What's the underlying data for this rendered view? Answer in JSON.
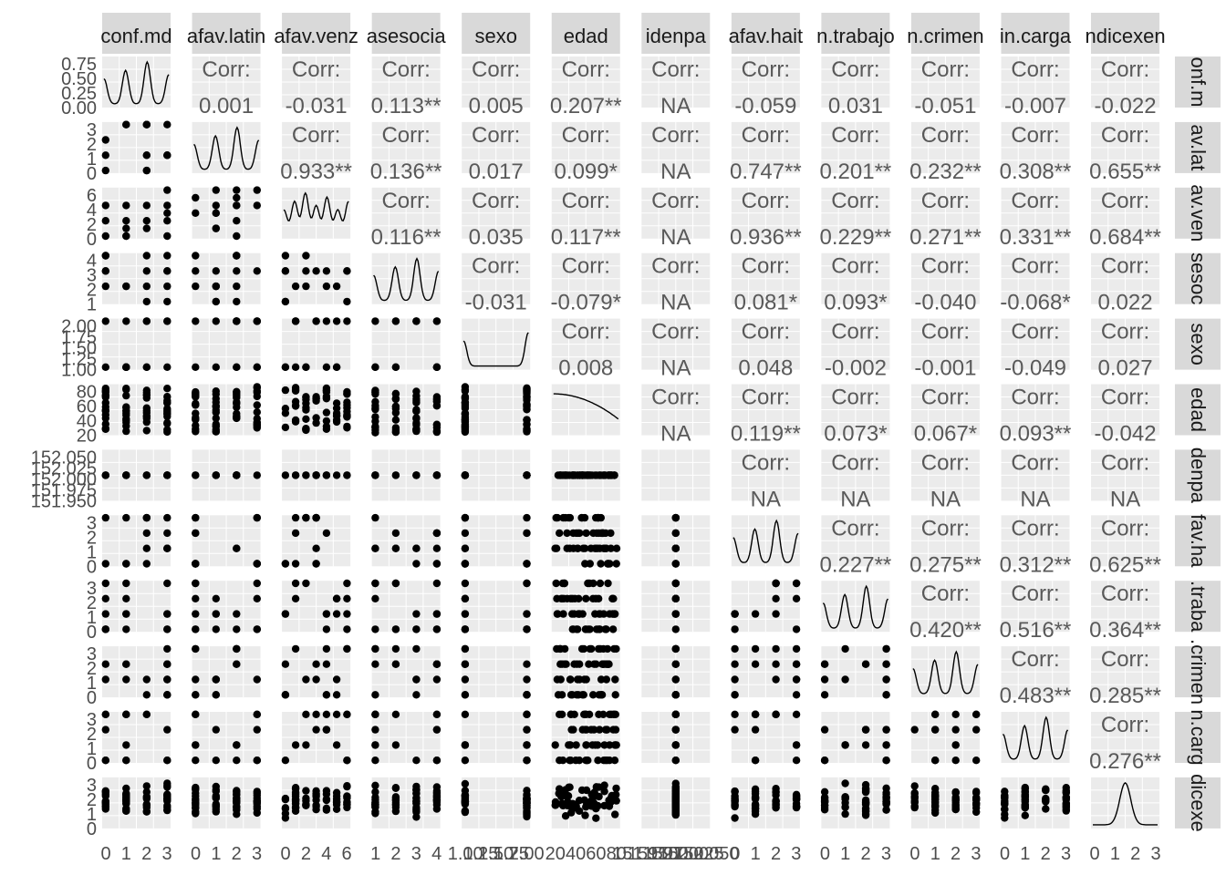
{
  "chart_data": {
    "type": "scatter-matrix",
    "variables": [
      "conf.md",
      "afav.latin",
      "afav.venz",
      "asesocia",
      "sexo",
      "edad",
      "idenpa",
      "afav.hait",
      "n.trabajo",
      "n.crimen",
      "in.carga",
      "ndicexen"
    ],
    "row_labels": [
      "onf.m",
      "av.lat",
      "av.ven",
      "sesoc",
      "sexo",
      "edad",
      "denpa",
      "fav.ha",
      ".traba",
      ".crimen",
      "n.carg",
      "dicexe"
    ],
    "corr_label": "Corr:",
    "correlations": [
      [
        null,
        "0.001",
        "-0.031",
        "0.113**",
        "0.005",
        "0.207**",
        "NA",
        "-0.059",
        "0.031",
        "-0.051",
        "-0.007",
        "-0.022"
      ],
      [
        null,
        null,
        "0.933**",
        "0.136**",
        "0.017",
        "0.099*",
        "NA",
        "0.747**",
        "0.201**",
        "0.232**",
        "0.308**",
        "0.655**"
      ],
      [
        null,
        null,
        null,
        "0.116**",
        "0.035",
        "0.117**",
        "NA",
        "0.936**",
        "0.229**",
        "0.271**",
        "0.331**",
        "0.684**"
      ],
      [
        null,
        null,
        null,
        null,
        "-0.031",
        "-0.079*",
        "NA",
        "0.081*",
        "0.093*",
        "-0.040",
        "-0.068*",
        "0.022"
      ],
      [
        null,
        null,
        null,
        null,
        null,
        "0.008",
        "NA",
        "0.048",
        "-0.002",
        "-0.001",
        "-0.049",
        "0.027"
      ],
      [
        null,
        null,
        null,
        null,
        null,
        null,
        "NA",
        "0.119**",
        "0.073*",
        "0.067*",
        "0.093**",
        "-0.042"
      ],
      [
        null,
        null,
        null,
        null,
        null,
        null,
        null,
        "NA",
        "NA",
        "NA",
        "NA",
        "NA"
      ],
      [
        null,
        null,
        null,
        null,
        null,
        null,
        null,
        null,
        "0.227**",
        "0.275**",
        "0.312**",
        "0.625**"
      ],
      [
        null,
        null,
        null,
        null,
        null,
        null,
        null,
        null,
        null,
        "0.420**",
        "0.516**",
        "0.364**"
      ],
      [
        null,
        null,
        null,
        null,
        null,
        null,
        null,
        null,
        null,
        null,
        "0.483**",
        "0.285**"
      ],
      [
        null,
        null,
        null,
        null,
        null,
        null,
        null,
        null,
        null,
        null,
        null,
        "0.276**"
      ],
      [
        null,
        null,
        null,
        null,
        null,
        null,
        null,
        null,
        null,
        null,
        null,
        null
      ]
    ],
    "y_ticks": [
      [
        "0.75",
        "0.50",
        "0.25",
        "0.00"
      ],
      [
        "3",
        "2",
        "1",
        "0"
      ],
      [
        "6",
        "4",
        "2",
        "0"
      ],
      [
        "4",
        "3",
        "2",
        "1"
      ],
      [
        "2.00",
        "1.75",
        "1.50",
        "1.25",
        "1.00"
      ],
      [
        "80",
        "60",
        "40",
        "20"
      ],
      [
        "152.050",
        "152.025",
        "152.000",
        "151.975",
        "151.950"
      ],
      [
        "3",
        "2",
        "1",
        "0"
      ],
      [
        "3",
        "2",
        "1",
        "0"
      ],
      [
        "3",
        "2",
        "1",
        "0"
      ],
      [
        "3",
        "2",
        "1",
        "0"
      ],
      [
        "3",
        "2",
        "1",
        "0"
      ]
    ],
    "x_ticks": [
      [
        "0",
        "1",
        "2",
        "3"
      ],
      [
        "0",
        "1",
        "2",
        "3"
      ],
      [
        "0",
        "2",
        "4",
        "6"
      ],
      [
        "1",
        "2",
        "3",
        "4"
      ],
      [
        "1.00",
        "1.25",
        "1.50",
        "1.75",
        "2.00"
      ],
      [
        "20",
        "40",
        "60",
        "80"
      ],
      [
        "151.950",
        "151.975",
        "152.000",
        "152.025",
        "152.050"
      ],
      [
        "0",
        "1",
        "2",
        "3"
      ],
      [
        "0",
        "1",
        "2",
        "3"
      ],
      [
        "0",
        "1",
        "2",
        "3"
      ],
      [
        "0",
        "1",
        "2",
        "3"
      ],
      [
        "0",
        "1",
        "2",
        "3"
      ]
    ],
    "var_values": [
      [
        0,
        1,
        2,
        3
      ],
      [
        0,
        1,
        2,
        3
      ],
      [
        0,
        1,
        2,
        3,
        4,
        5,
        6
      ],
      [
        1,
        2,
        3,
        4
      ],
      [
        1,
        2
      ],
      "continuous",
      [
        152
      ],
      [
        0,
        1,
        2,
        3
      ],
      [
        0,
        1,
        2,
        3
      ],
      [
        0,
        1,
        2,
        3
      ],
      [
        0,
        1,
        2,
        3
      ],
      "continuous"
    ],
    "var_ranges": [
      [
        0,
        3
      ],
      [
        0,
        3
      ],
      [
        0,
        6
      ],
      [
        1,
        4
      ],
      [
        1,
        2
      ],
      [
        18,
        90
      ],
      [
        151.95,
        152.05
      ],
      [
        0,
        3
      ],
      [
        0,
        3
      ],
      [
        0,
        3
      ],
      [
        0,
        3
      ],
      [
        0,
        3
      ]
    ],
    "grid": true,
    "colors": {
      "panel": "#ebebeb",
      "strip": "#d9d9d9",
      "points": "#000000",
      "corr_text": "#595959",
      "tick_text": "#4d4d4d",
      "grid": "#ffffff"
    }
  }
}
